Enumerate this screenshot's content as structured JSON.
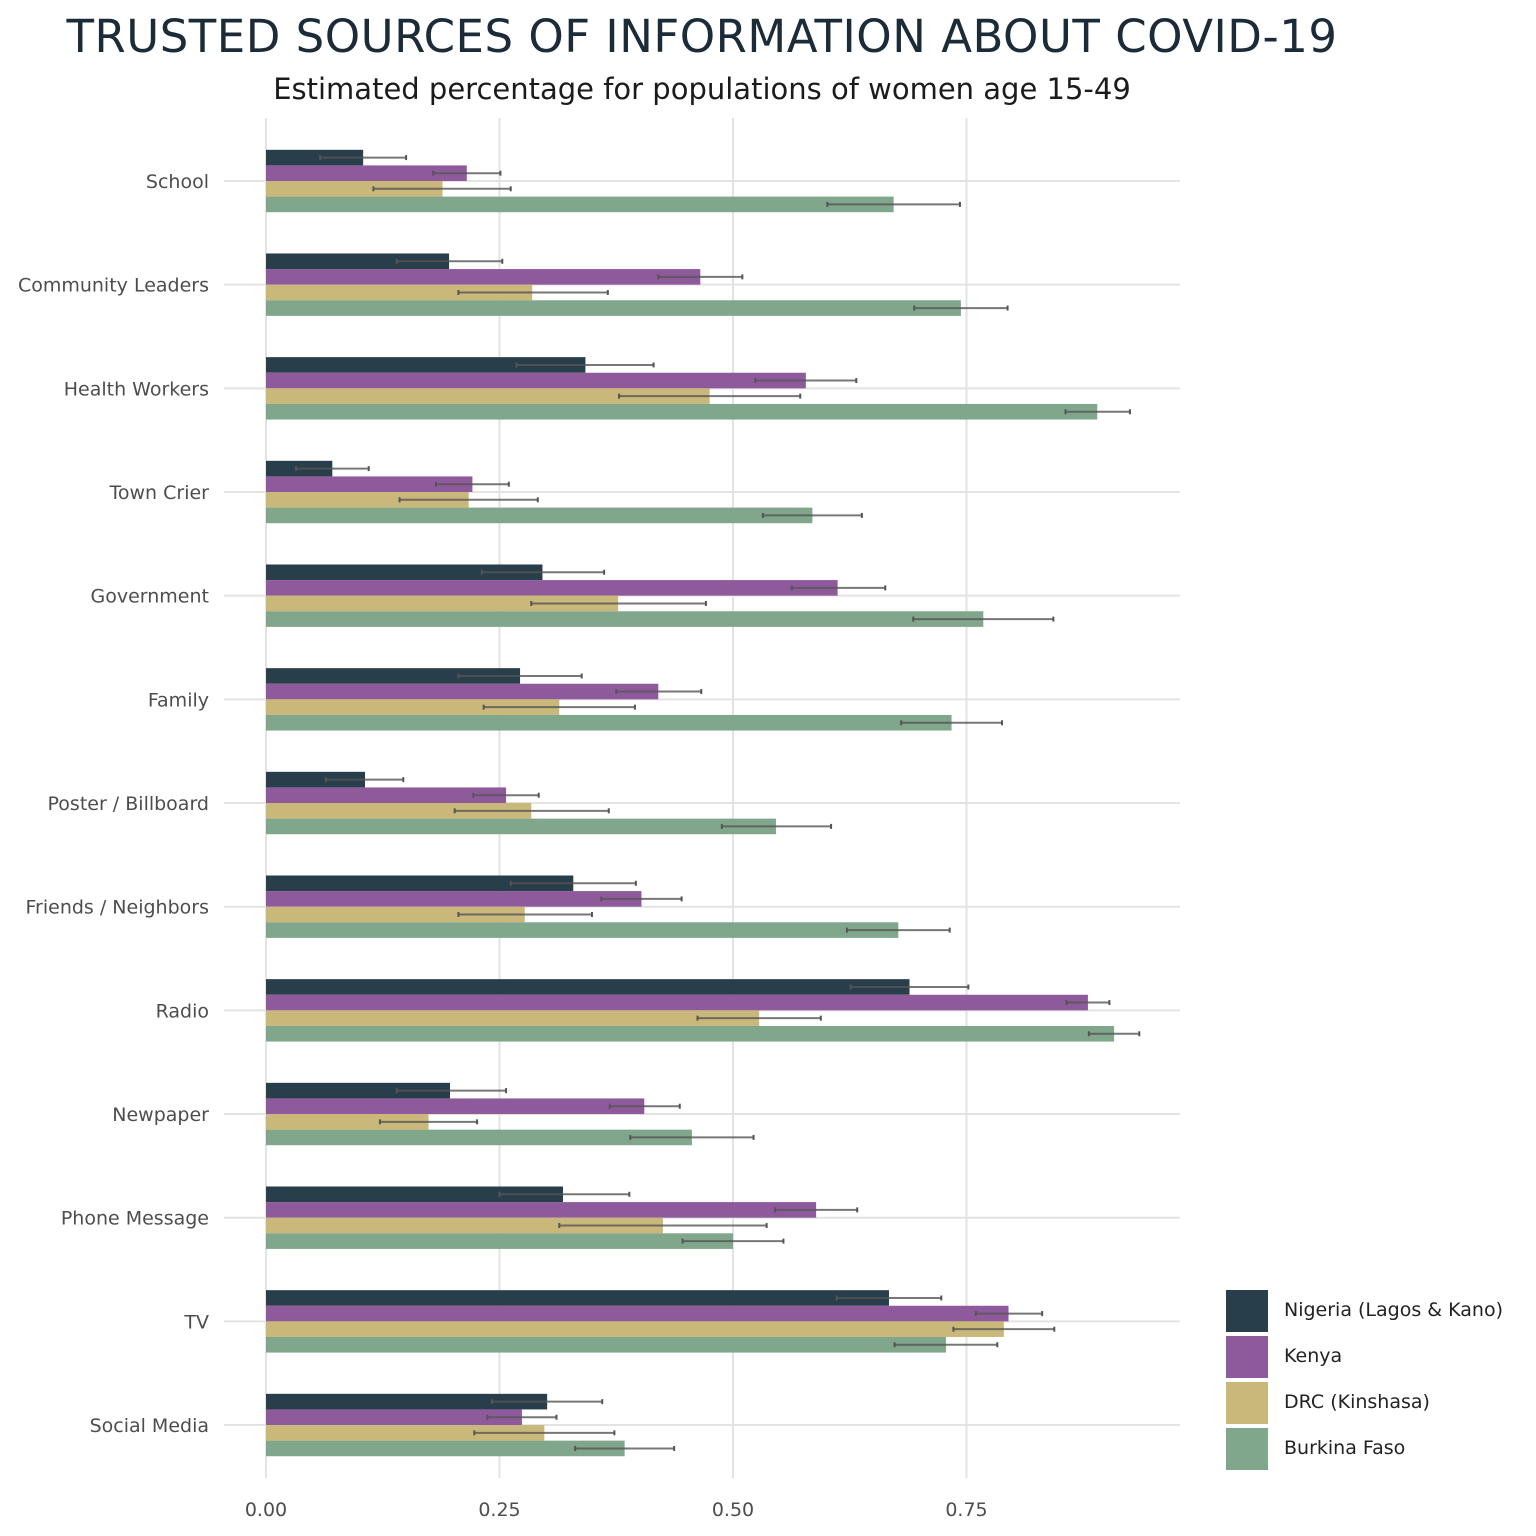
{
  "chart_data": {
    "type": "bar",
    "orientation": "horizontal",
    "title": "TRUSTED SOURCES OF INFORMATION ABOUT COVID-19",
    "subtitle": "Estimated percentage for populations of women age 15-49",
    "xlabel": "",
    "ylabel": "",
    "xlim": [
      0,
      0.98
    ],
    "xticks": [
      "0.00",
      "0.25",
      "0.50",
      "0.75"
    ],
    "grid": true,
    "legend_position": "right-bottom",
    "categories": [
      "School",
      "Community Leaders",
      "Health Workers",
      "Town Crier",
      "Government",
      "Family",
      "Poster / Billboard",
      "Friends / Neighbors",
      "Radio",
      "Newpaper",
      "Phone Message",
      "TV",
      "Social Media"
    ],
    "series": [
      {
        "name": "Nigeria (Lagos & Kano)",
        "color": "#283e4b",
        "values": [
          0.104,
          0.196,
          0.342,
          0.071,
          0.296,
          0.272,
          0.106,
          0.329,
          0.689,
          0.197,
          0.318,
          0.667,
          0.301
        ],
        "lower": [
          0.058,
          0.14,
          0.268,
          0.032,
          0.231,
          0.206,
          0.064,
          0.262,
          0.626,
          0.14,
          0.25,
          0.611,
          0.242
        ],
        "upper": [
          0.15,
          0.253,
          0.415,
          0.11,
          0.362,
          0.338,
          0.147,
          0.396,
          0.752,
          0.257,
          0.389,
          0.723,
          0.36
        ]
      },
      {
        "name": "Kenya",
        "color": "#8f5a9c",
        "values": [
          0.215,
          0.465,
          0.578,
          0.221,
          0.612,
          0.42,
          0.257,
          0.402,
          0.88,
          0.405,
          0.589,
          0.795,
          0.274
        ],
        "lower": [
          0.179,
          0.42,
          0.524,
          0.182,
          0.563,
          0.375,
          0.222,
          0.359,
          0.857,
          0.368,
          0.545,
          0.76,
          0.237
        ],
        "upper": [
          0.251,
          0.51,
          0.632,
          0.26,
          0.663,
          0.466,
          0.292,
          0.445,
          0.903,
          0.443,
          0.633,
          0.831,
          0.311
        ]
      },
      {
        "name": "DRC (Kinshasa)",
        "color": "#c9b87a",
        "values": [
          0.189,
          0.285,
          0.475,
          0.217,
          0.377,
          0.314,
          0.284,
          0.277,
          0.528,
          0.174,
          0.425,
          0.79,
          0.298
        ],
        "lower": [
          0.115,
          0.206,
          0.378,
          0.143,
          0.284,
          0.233,
          0.202,
          0.206,
          0.462,
          0.122,
          0.314,
          0.736,
          0.223
        ],
        "upper": [
          0.262,
          0.366,
          0.572,
          0.291,
          0.471,
          0.395,
          0.367,
          0.349,
          0.594,
          0.226,
          0.536,
          0.844,
          0.373
        ]
      },
      {
        "name": "Burkina Faso",
        "color": "#80a68c",
        "values": [
          0.672,
          0.744,
          0.89,
          0.585,
          0.768,
          0.734,
          0.546,
          0.677,
          0.908,
          0.456,
          0.5,
          0.728,
          0.384
        ],
        "lower": [
          0.601,
          0.694,
          0.856,
          0.532,
          0.693,
          0.68,
          0.488,
          0.622,
          0.881,
          0.39,
          0.446,
          0.673,
          0.331
        ],
        "upper": [
          0.743,
          0.794,
          0.925,
          0.638,
          0.843,
          0.788,
          0.605,
          0.732,
          0.935,
          0.522,
          0.554,
          0.783,
          0.437
        ]
      }
    ]
  }
}
